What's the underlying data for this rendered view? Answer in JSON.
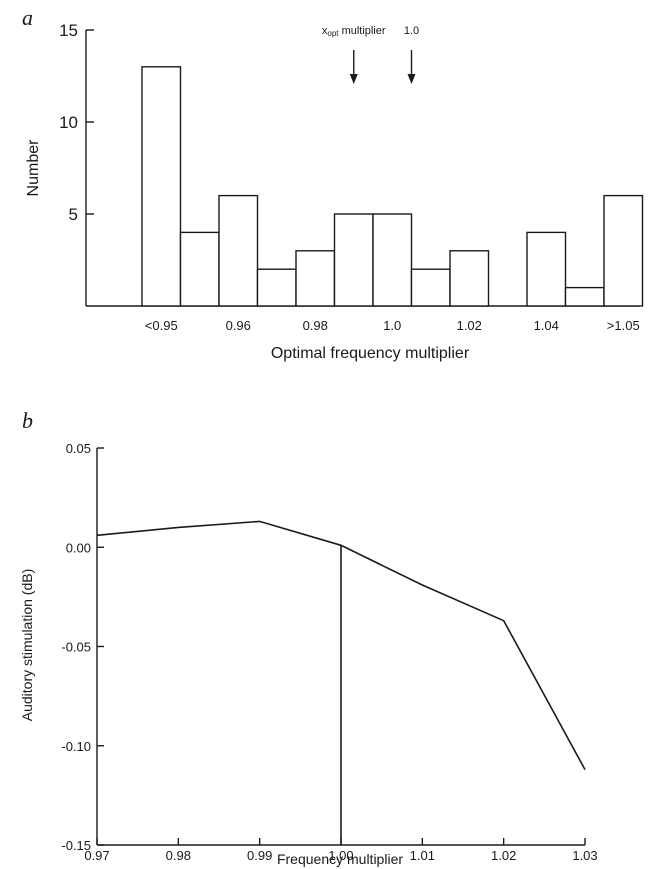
{
  "chart_data": [
    {
      "panel": "a",
      "type": "bar",
      "xlabel": "Optimal frequency multiplier",
      "ylabel": "Number",
      "ylim": [
        0,
        15
      ],
      "yticks": [
        5,
        10,
        15
      ],
      "xtick_labels": [
        "<0.95",
        "0.96",
        "0.98",
        "1.0",
        "1.02",
        "1.04",
        ">1.05"
      ],
      "values": [
        13,
        4,
        6,
        2,
        3,
        5,
        5,
        2,
        3,
        0,
        4,
        1,
        6
      ],
      "annotations": [
        {
          "label_main": "x",
          "label_sub": "opt",
          "label_rest": " multiplier",
          "at_bin": 5.5
        },
        {
          "label_main": "1.0",
          "at_bin": 7
        }
      ]
    },
    {
      "panel": "b",
      "type": "line",
      "xlabel": "Frequency multiplier",
      "ylabel": "Auditory stimulation (dB)",
      "xlim": [
        0.97,
        1.03
      ],
      "ylim": [
        -0.15,
        0.05
      ],
      "xticks": [
        "0.97",
        "0.98",
        "0.99",
        "1.00",
        "1.01",
        "1.02",
        "1.03"
      ],
      "yticks": [
        "0.05",
        "0.00",
        "-0.05",
        "-0.10",
        "-0.15"
      ],
      "x": [
        0.97,
        0.98,
        0.99,
        1.0,
        1.01,
        1.02,
        1.03
      ],
      "y": [
        0.006,
        0.01,
        0.013,
        0.001,
        -0.019,
        -0.037,
        -0.112
      ],
      "vline_x": 1.0
    }
  ]
}
